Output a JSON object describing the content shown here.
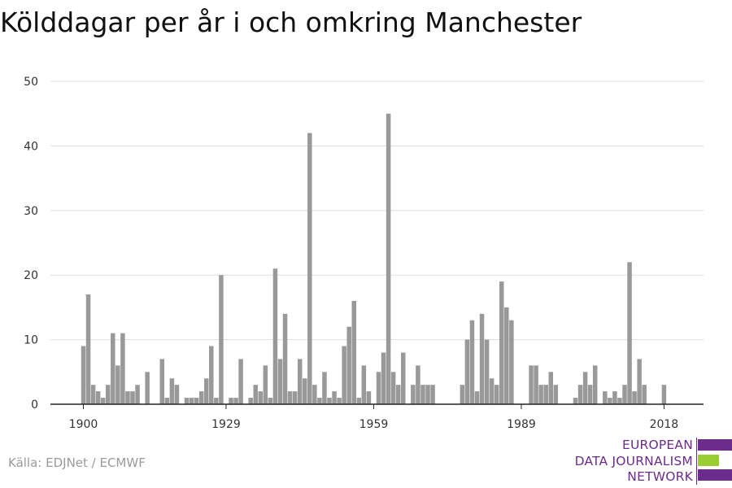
{
  "title": "Kölddagar per år i och omkring Manchester",
  "source": "Källa: EDJNet / ECMWF",
  "logo": {
    "lines": [
      "EUROPEAN",
      "DATA JOURNALISM",
      "NETWORK"
    ],
    "colors": {
      "purple": "#6b2c8c",
      "green": "#9acd32"
    }
  },
  "colors": {
    "bar": "#999999",
    "grid": "#dddddd",
    "axis": "#222222",
    "text": "#333333"
  },
  "chart_data": {
    "type": "bar",
    "title": "Kölddagar per år i och omkring Manchester",
    "xlabel": "",
    "ylabel": "",
    "ylim": [
      0,
      50
    ],
    "yticks": [
      0,
      10,
      20,
      30,
      40,
      50
    ],
    "xticks": [
      1900,
      1929,
      1959,
      1989,
      2018
    ],
    "grid": true,
    "x": [
      1900,
      1901,
      1902,
      1903,
      1904,
      1905,
      1906,
      1907,
      1908,
      1909,
      1910,
      1911,
      1912,
      1913,
      1914,
      1915,
      1916,
      1917,
      1918,
      1919,
      1920,
      1921,
      1922,
      1923,
      1924,
      1925,
      1926,
      1927,
      1928,
      1929,
      1930,
      1931,
      1932,
      1933,
      1934,
      1935,
      1936,
      1937,
      1938,
      1939,
      1940,
      1941,
      1942,
      1943,
      1944,
      1945,
      1946,
      1947,
      1948,
      1949,
      1950,
      1951,
      1952,
      1953,
      1954,
      1955,
      1956,
      1957,
      1958,
      1959,
      1960,
      1961,
      1962,
      1963,
      1964,
      1965,
      1966,
      1967,
      1968,
      1969,
      1970,
      1971,
      1972,
      1973,
      1974,
      1975,
      1976,
      1977,
      1978,
      1979,
      1980,
      1981,
      1982,
      1983,
      1984,
      1985,
      1986,
      1987,
      1988,
      1989,
      1990,
      1991,
      1992,
      1993,
      1994,
      1995,
      1996,
      1997,
      1998,
      1999,
      2000,
      2001,
      2002,
      2003,
      2004,
      2005,
      2006,
      2007,
      2008,
      2009,
      2010,
      2011,
      2012,
      2013,
      2014,
      2015,
      2016,
      2017,
      2018
    ],
    "values": [
      9,
      17,
      3,
      2,
      1,
      3,
      11,
      6,
      11,
      2,
      2,
      3,
      0,
      5,
      0,
      0,
      7,
      1,
      4,
      3,
      0,
      1,
      1,
      1,
      2,
      4,
      9,
      1,
      20,
      0,
      1,
      1,
      7,
      0,
      1,
      3,
      2,
      6,
      1,
      21,
      7,
      14,
      2,
      2,
      7,
      4,
      42,
      3,
      1,
      5,
      1,
      2,
      1,
      9,
      12,
      16,
      1,
      6,
      2,
      0,
      5,
      8,
      45,
      5,
      3,
      8,
      0,
      3,
      6,
      3,
      3,
      3,
      0,
      0,
      0,
      0,
      0,
      3,
      10,
      13,
      2,
      14,
      10,
      4,
      3,
      19,
      15,
      13,
      0,
      0,
      0,
      6,
      6,
      3,
      3,
      5,
      3,
      0,
      0,
      0,
      1,
      3,
      5,
      3,
      6,
      0,
      2,
      1,
      2,
      1,
      3,
      22,
      2,
      7,
      3,
      0,
      0,
      0,
      3
    ]
  }
}
